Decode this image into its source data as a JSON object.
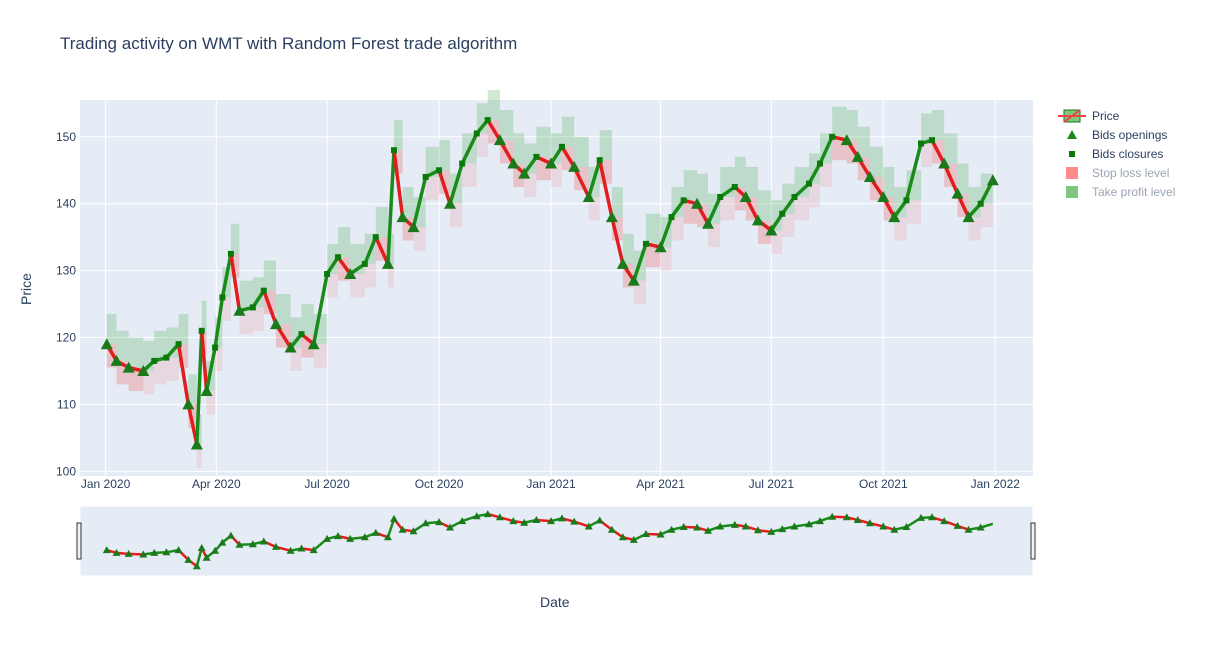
{
  "title": "Trading activity on WMT with Random Forest trade algorithm",
  "legend": {
    "items": [
      {
        "label": "Price",
        "color": "#2ca02c",
        "alt": "#ef4444"
      },
      {
        "label": "Bids openings",
        "color": "#1a8a1a"
      },
      {
        "label": "Bids closures",
        "color": "#0a7a0a"
      },
      {
        "label": "Stop loss level",
        "color": "#ff8a8a"
      },
      {
        "label": "Take profit level",
        "color": "#7fc47f"
      }
    ]
  },
  "chart_data": {
    "type": "line",
    "title": "Trading activity on WMT with Random Forest trade algorithm",
    "xlabel": "Date",
    "ylabel": "Price",
    "x_ticks": [
      "Jan 2020",
      "Apr 2020",
      "Jul 2020",
      "Oct 2020",
      "Jan 2021",
      "Apr 2021",
      "Jul 2021",
      "Oct 2021",
      "Jan 2022"
    ],
    "y_ticks": [
      100,
      110,
      120,
      130,
      140,
      150
    ],
    "ylim": [
      99.3,
      155.5
    ],
    "xlim": [
      "2019-12-11",
      "2022-02-01"
    ],
    "range_slider": true,
    "series": [
      {
        "name": "Price",
        "x": [
          "2020-01-02",
          "2020-01-10",
          "2020-01-20",
          "2020-02-01",
          "2020-02-10",
          "2020-02-20",
          "2020-03-01",
          "2020-03-09",
          "2020-03-16",
          "2020-03-20",
          "2020-03-24",
          "2020-03-31",
          "2020-04-06",
          "2020-04-13",
          "2020-04-20",
          "2020-05-01",
          "2020-05-10",
          "2020-05-20",
          "2020-06-01",
          "2020-06-10",
          "2020-06-20",
          "2020-07-01",
          "2020-07-10",
          "2020-07-20",
          "2020-08-01",
          "2020-08-10",
          "2020-08-20",
          "2020-08-25",
          "2020-09-01",
          "2020-09-10",
          "2020-09-20",
          "2020-10-01",
          "2020-10-10",
          "2020-10-20",
          "2020-11-01",
          "2020-11-10",
          "2020-11-20",
          "2020-12-01",
          "2020-12-10",
          "2020-12-20",
          "2021-01-01",
          "2021-01-10",
          "2021-01-20",
          "2021-02-01",
          "2021-02-10",
          "2021-02-20",
          "2021-03-01",
          "2021-03-10",
          "2021-03-20",
          "2021-04-01",
          "2021-04-10",
          "2021-04-20",
          "2021-05-01",
          "2021-05-10",
          "2021-05-20",
          "2021-06-01",
          "2021-06-10",
          "2021-06-20",
          "2021-07-01",
          "2021-07-10",
          "2021-07-20",
          "2021-08-01",
          "2021-08-10",
          "2021-08-20",
          "2021-09-01",
          "2021-09-10",
          "2021-09-20",
          "2021-10-01",
          "2021-10-10",
          "2021-10-20",
          "2021-11-01",
          "2021-11-10",
          "2021-11-20",
          "2021-12-01",
          "2021-12-10",
          "2021-12-20",
          "2021-12-30"
        ],
        "values": [
          119.0,
          116.5,
          115.5,
          115.0,
          116.5,
          117.0,
          119.0,
          110.0,
          104.0,
          121.0,
          112.0,
          118.5,
          126.0,
          132.5,
          124.0,
          124.5,
          127.0,
          122.0,
          118.5,
          120.5,
          119.0,
          129.5,
          132.0,
          129.5,
          131.0,
          135.0,
          131.0,
          148.0,
          138.0,
          136.5,
          144.0,
          145.0,
          140.0,
          146.0,
          150.5,
          152.5,
          149.5,
          146.0,
          144.5,
          147.0,
          146.0,
          148.5,
          145.5,
          141.0,
          146.5,
          138.0,
          131.0,
          128.5,
          134.0,
          133.5,
          138.0,
          140.5,
          140.0,
          137.0,
          141.0,
          142.5,
          141.0,
          137.5,
          136.0,
          138.5,
          141.0,
          143.0,
          146.0,
          150.0,
          149.5,
          147.0,
          144.0,
          141.0,
          138.0,
          140.5,
          149.0,
          149.5,
          146.0,
          141.5,
          138.0,
          140.0,
          143.5
        ]
      }
    ]
  }
}
